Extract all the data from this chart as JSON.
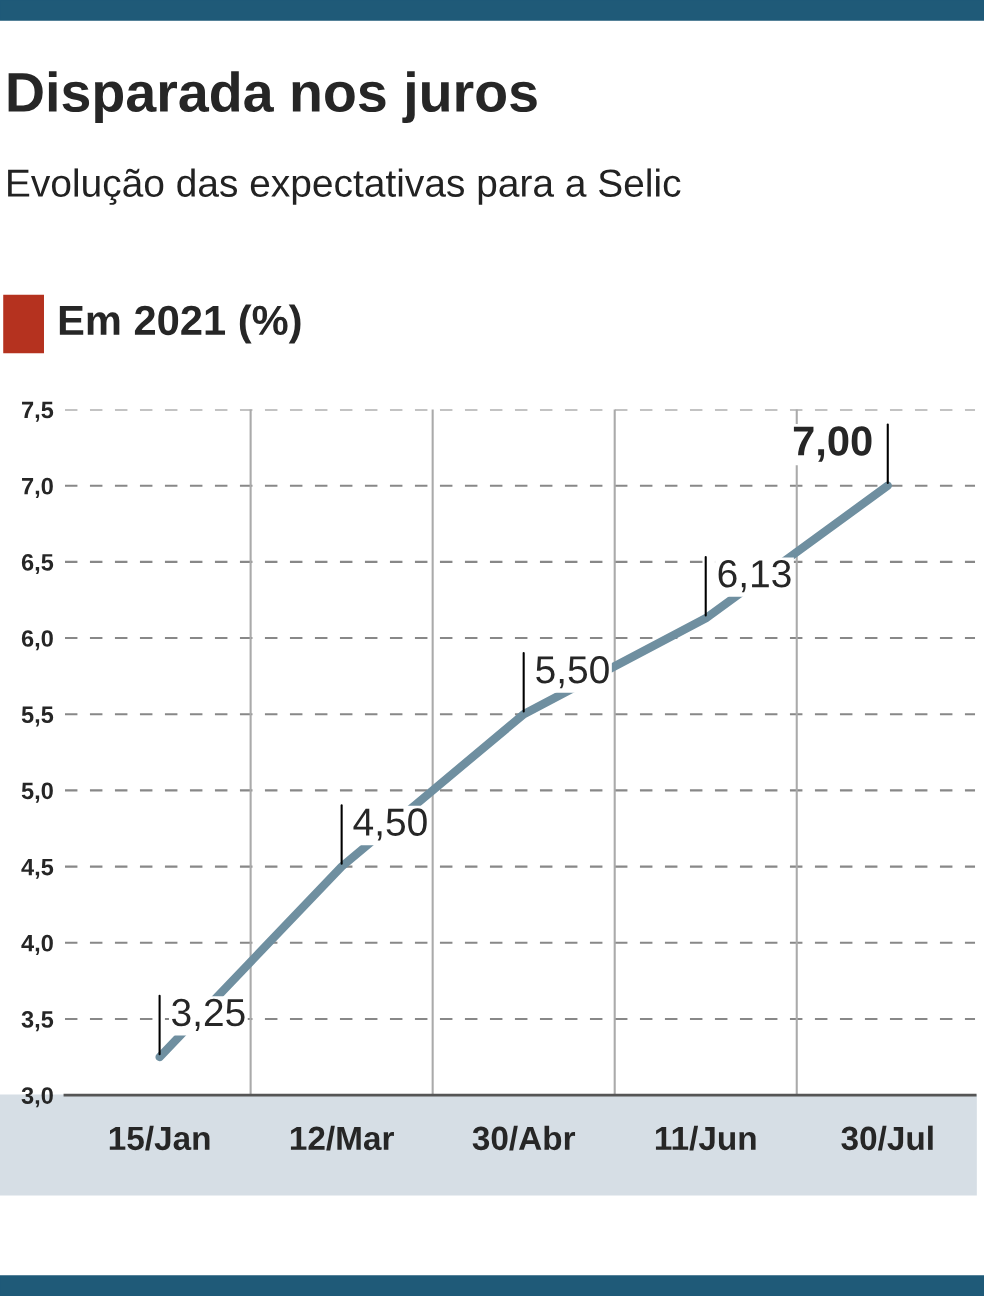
{
  "chart_data": {
    "type": "line",
    "title": "Disparada nos juros",
    "subtitle": "Evolução das expectativas para a Selic",
    "ylabel": "Em 2021 (%)",
    "categories": [
      "15/Jan",
      "12/Mar",
      "30/Abr",
      "11/Jun",
      "30/Jul"
    ],
    "series": [
      {
        "color": "#6f8fa0",
        "values": [
          3.25,
          4.5,
          5.5,
          6.13,
          7.0
        ],
        "value_labels": [
          "3,25",
          "4,50",
          "5,50",
          "6,13",
          "7,00"
        ]
      }
    ],
    "ylim": [
      3.0,
      7.5
    ],
    "yticks": [
      {
        "value": 3.0,
        "label": "3,0"
      },
      {
        "value": 3.5,
        "label": "3,5"
      },
      {
        "value": 4.0,
        "label": "4,0"
      },
      {
        "value": 4.5,
        "label": "4,5"
      },
      {
        "value": 5.0,
        "label": "5,0"
      },
      {
        "value": 5.5,
        "label": "5,5"
      },
      {
        "value": 6.0,
        "label": "6,0"
      },
      {
        "value": 6.5,
        "label": "6,5"
      },
      {
        "value": 7.0,
        "label": "7,0"
      },
      {
        "value": 7.5,
        "label": "7,5"
      }
    ],
    "grid": true,
    "marker": "none",
    "line_style": "solid"
  }
}
